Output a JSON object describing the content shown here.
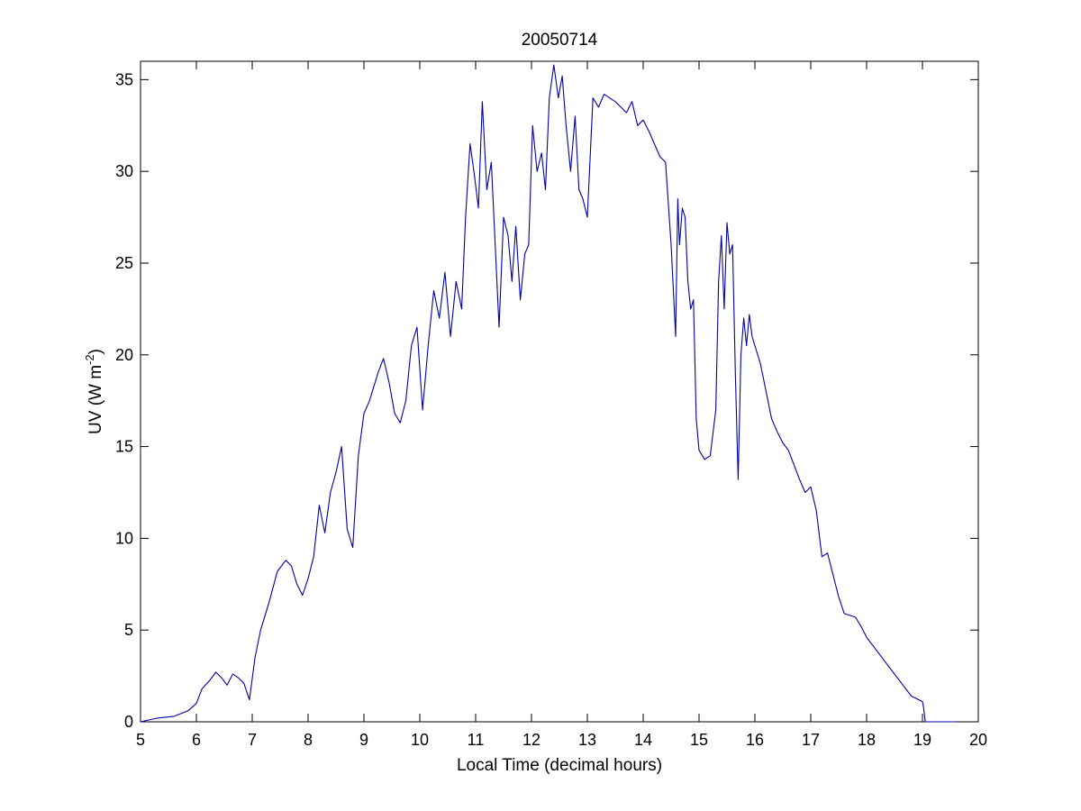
{
  "chart_data": {
    "type": "line",
    "title": "20050714",
    "xlabel": "Local Time (decimal hours)",
    "ylabel": {
      "prefix": "UV (W m",
      "superscript": "-2",
      "suffix": ")"
    },
    "xlim": [
      5,
      20
    ],
    "ylim": [
      0,
      36
    ],
    "xticks": [
      5,
      6,
      7,
      8,
      9,
      10,
      11,
      12,
      13,
      14,
      15,
      16,
      17,
      18,
      19,
      20
    ],
    "yticks": [
      0,
      5,
      10,
      15,
      20,
      25,
      30,
      35
    ],
    "grid": false,
    "line_color": "#0000aa",
    "series": [
      {
        "x": [
          5.0,
          5.3,
          5.6,
          5.85,
          6.0,
          6.1,
          6.25,
          6.35,
          6.45,
          6.55,
          6.65,
          6.75,
          6.85,
          6.95,
          7.05,
          7.15,
          7.3,
          7.45,
          7.6,
          7.7,
          7.8,
          7.9,
          8.0,
          8.1,
          8.2,
          8.3,
          8.4,
          8.5,
          8.6,
          8.7,
          8.8,
          8.9,
          9.0,
          9.1,
          9.25,
          9.35,
          9.45,
          9.55,
          9.65,
          9.75,
          9.85,
          9.95,
          10.05,
          10.15,
          10.25,
          10.35,
          10.45,
          10.55,
          10.65,
          10.75,
          10.82,
          10.9,
          10.97,
          11.05,
          11.12,
          11.2,
          11.28,
          11.35,
          11.42,
          11.5,
          11.58,
          11.65,
          11.72,
          11.8,
          11.88,
          11.95,
          12.02,
          12.1,
          12.18,
          12.25,
          12.32,
          12.4,
          12.48,
          12.55,
          12.62,
          12.7,
          12.78,
          12.85,
          12.92,
          13.0,
          13.1,
          13.2,
          13.3,
          13.4,
          13.5,
          13.6,
          13.7,
          13.8,
          13.9,
          14.0,
          14.1,
          14.2,
          14.3,
          14.4,
          14.5,
          14.58,
          14.62,
          14.65,
          14.7,
          14.75,
          14.8,
          14.85,
          14.9,
          14.95,
          15.0,
          15.1,
          15.2,
          15.3,
          15.35,
          15.4,
          15.45,
          15.5,
          15.55,
          15.6,
          15.65,
          15.7,
          15.75,
          15.8,
          15.85,
          15.9,
          15.95,
          16.0,
          16.1,
          16.2,
          16.3,
          16.4,
          16.5,
          16.6,
          16.7,
          16.8,
          16.9,
          17.0,
          17.1,
          17.2,
          17.3,
          17.4,
          17.5,
          17.6,
          17.7,
          17.8,
          17.9,
          18.0,
          18.2,
          18.4,
          18.6,
          18.8,
          19.0,
          19.02,
          19.05,
          19.2,
          19.4,
          19.6
        ],
        "y": [
          0.0,
          0.2,
          0.3,
          0.6,
          1.0,
          1.8,
          2.3,
          2.7,
          2.4,
          2.0,
          2.6,
          2.4,
          2.1,
          1.2,
          3.5,
          5.0,
          6.5,
          8.2,
          8.8,
          8.5,
          7.5,
          6.9,
          7.8,
          9.0,
          11.8,
          10.3,
          12.5,
          13.6,
          15.0,
          10.5,
          9.5,
          14.5,
          16.8,
          17.5,
          19.0,
          19.8,
          18.5,
          16.8,
          16.3,
          17.5,
          20.5,
          21.5,
          17.0,
          20.5,
          23.5,
          22.0,
          24.5,
          21.0,
          24.0,
          22.5,
          27.5,
          31.5,
          30.0,
          28.0,
          33.8,
          29.0,
          30.5,
          26.0,
          21.5,
          27.5,
          26.5,
          24.0,
          27.0,
          23.0,
          25.5,
          26.0,
          32.5,
          30.0,
          31.0,
          29.0,
          34.0,
          35.8,
          34.0,
          35.2,
          32.5,
          30.0,
          33.0,
          29.0,
          28.5,
          27.5,
          34.0,
          33.5,
          34.2,
          34.0,
          33.8,
          33.5,
          33.2,
          33.8,
          32.5,
          32.8,
          32.2,
          31.5,
          30.8,
          30.5,
          26.0,
          21.0,
          28.5,
          26.0,
          28.0,
          27.5,
          24.0,
          22.5,
          23.0,
          16.5,
          14.8,
          14.3,
          14.5,
          17.0,
          24.0,
          26.5,
          22.5,
          27.2,
          25.5,
          26.0,
          19.0,
          13.2,
          20.0,
          22.0,
          20.5,
          22.2,
          21.0,
          20.5,
          19.5,
          18.0,
          16.5,
          15.8,
          15.2,
          14.8,
          14.0,
          13.2,
          12.5,
          12.8,
          11.5,
          9.0,
          9.2,
          8.0,
          6.8,
          5.9,
          5.8,
          5.7,
          5.2,
          4.6,
          3.8,
          3.0,
          2.2,
          1.4,
          1.1,
          0.8,
          0.0,
          0.0,
          0.0,
          0.0
        ]
      }
    ]
  }
}
